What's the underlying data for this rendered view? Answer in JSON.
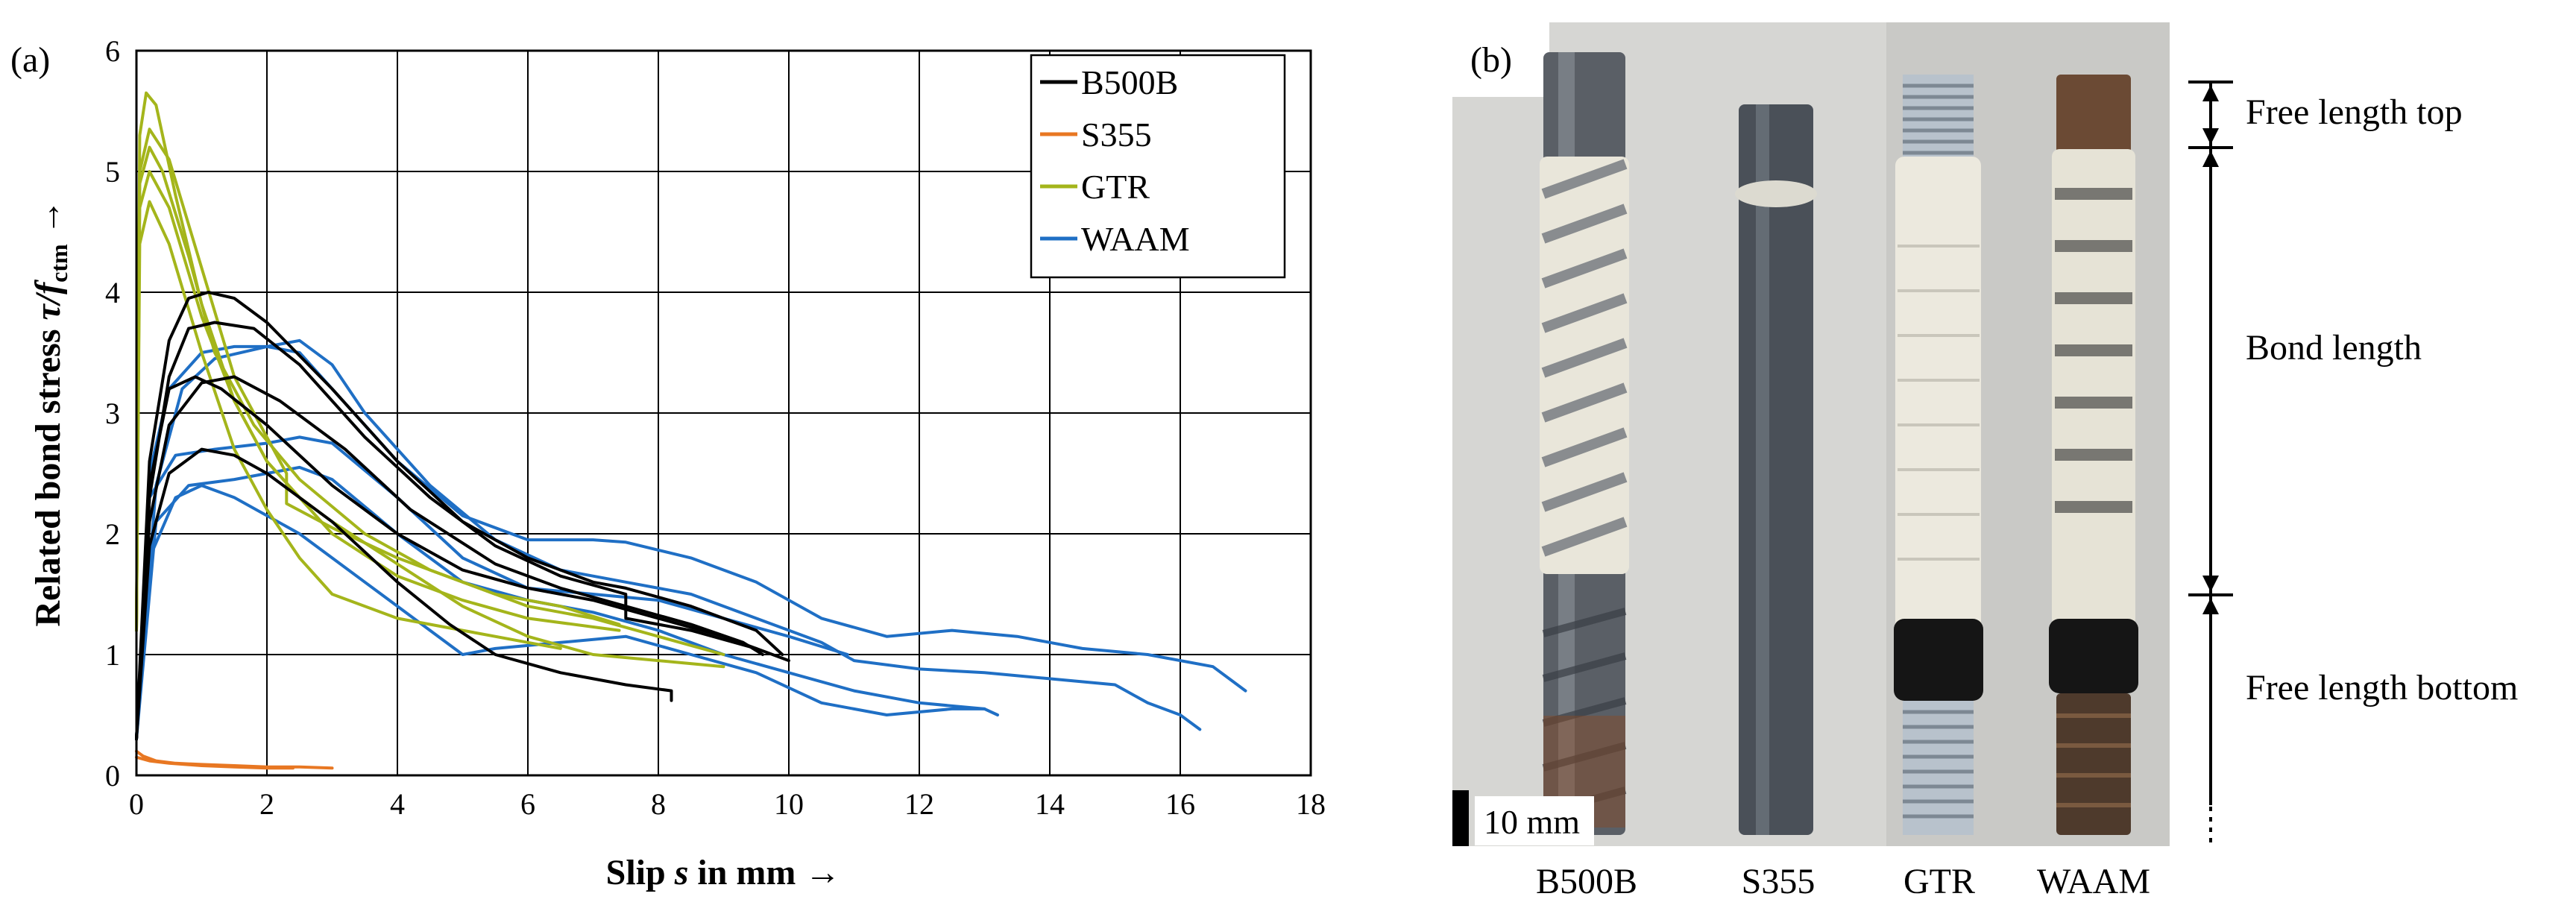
{
  "chart_data": {
    "panel_label": "(a)",
    "type": "line",
    "title": "",
    "xlabel": "Slip s in mm →",
    "xlabel_parts": {
      "a": "Slip ",
      "b": "s",
      "c": " in mm →"
    },
    "ylabel": "Related bond stress τ/fctm →",
    "ylabel_parts": {
      "a": "Related bond stress ",
      "b": "τ/",
      "c": "f",
      "d": "ctm",
      "e": " →"
    },
    "xlim": [
      0,
      18
    ],
    "ylim": [
      0,
      6
    ],
    "xticks": [
      "0",
      "2",
      "4",
      "6",
      "8",
      "10",
      "12",
      "14",
      "16",
      "18"
    ],
    "yticks": [
      "0",
      "1",
      "2",
      "3",
      "4",
      "5",
      "6"
    ],
    "grid": true,
    "legend_position": "top-right",
    "series": [
      {
        "name": "B500B",
        "color": "#000000",
        "curves": [
          [
            [
              0,
              0.3
            ],
            [
              0.2,
              2.6
            ],
            [
              0.5,
              3.6
            ],
            [
              0.8,
              3.95
            ],
            [
              1.1,
              4.0
            ],
            [
              1.5,
              3.95
            ],
            [
              2.0,
              3.75
            ],
            [
              3.0,
              3.2
            ],
            [
              4.0,
              2.6
            ],
            [
              5.0,
              2.1
            ],
            [
              6.0,
              1.8
            ],
            [
              7.0,
              1.6
            ],
            [
              7.5,
              1.55
            ],
            [
              8.5,
              1.4
            ],
            [
              9.5,
              1.2
            ],
            [
              9.9,
              1.0
            ]
          ],
          [
            [
              0,
              0.3
            ],
            [
              0.2,
              2.3
            ],
            [
              0.5,
              3.3
            ],
            [
              0.8,
              3.7
            ],
            [
              1.2,
              3.75
            ],
            [
              1.8,
              3.7
            ],
            [
              2.5,
              3.4
            ],
            [
              3.5,
              2.8
            ],
            [
              4.5,
              2.3
            ],
            [
              5.5,
              1.9
            ],
            [
              6.5,
              1.65
            ],
            [
              7.5,
              1.5
            ],
            [
              7.5,
              1.3
            ],
            [
              8.5,
              1.2
            ],
            [
              9.5,
              1.05
            ],
            [
              10,
              0.95
            ]
          ],
          [
            [
              0,
              0.3
            ],
            [
              0.2,
              2.1
            ],
            [
              0.5,
              2.9
            ],
            [
              1.0,
              3.25
            ],
            [
              1.5,
              3.3
            ],
            [
              2.2,
              3.1
            ],
            [
              3.2,
              2.7
            ],
            [
              4.2,
              2.2
            ],
            [
              5.5,
              1.75
            ],
            [
              6.5,
              1.55
            ],
            [
              7.5,
              1.4
            ],
            [
              8.5,
              1.25
            ],
            [
              9.3,
              1.1
            ],
            [
              9.6,
              1.0
            ]
          ],
          [
            [
              0,
              0.3
            ],
            [
              0.2,
              1.9
            ],
            [
              0.5,
              2.5
            ],
            [
              1.0,
              2.7
            ],
            [
              1.5,
              2.65
            ],
            [
              2.0,
              2.5
            ],
            [
              3.0,
              2.1
            ],
            [
              4.0,
              1.6
            ],
            [
              4.8,
              1.25
            ],
            [
              5.5,
              1.0
            ],
            [
              6.5,
              0.85
            ],
            [
              7.5,
              0.75
            ],
            [
              8.2,
              0.7
            ],
            [
              8.2,
              0.62
            ]
          ],
          [
            [
              0,
              0.3
            ],
            [
              0.2,
              2.4
            ],
            [
              0.5,
              3.2
            ],
            [
              0.9,
              3.3
            ],
            [
              1.3,
              3.2
            ],
            [
              2.0,
              2.9
            ],
            [
              3.0,
              2.4
            ],
            [
              4.0,
              2.0
            ],
            [
              5.0,
              1.7
            ],
            [
              6.0,
              1.55
            ],
            [
              7.0,
              1.45
            ],
            [
              8.0,
              1.3
            ],
            [
              9.0,
              1.15
            ],
            [
              9.5,
              1.05
            ]
          ]
        ]
      },
      {
        "name": "S355",
        "color": "#e87722",
        "curves": [
          [
            [
              0,
              0.2
            ],
            [
              0.1,
              0.16
            ],
            [
              0.3,
              0.12
            ],
            [
              0.6,
              0.1
            ],
            [
              1.0,
              0.09
            ],
            [
              1.5,
              0.08
            ],
            [
              2.0,
              0.07
            ],
            [
              2.5,
              0.07
            ],
            [
              3.0,
              0.06
            ]
          ],
          [
            [
              0,
              0.15
            ],
            [
              0.2,
              0.12
            ],
            [
              0.5,
              0.1
            ],
            [
              1.0,
              0.08
            ],
            [
              1.5,
              0.07
            ],
            [
              2.0,
              0.06
            ],
            [
              2.4,
              0.06
            ]
          ]
        ]
      },
      {
        "name": "GTR",
        "color": "#a4b51b",
        "curves": [
          [
            [
              0,
              1.2
            ],
            [
              0.05,
              5.3
            ],
            [
              0.15,
              5.65
            ],
            [
              0.3,
              5.55
            ],
            [
              0.6,
              4.8
            ],
            [
              1.0,
              3.9
            ],
            [
              1.5,
              3.1
            ],
            [
              2.0,
              2.6
            ],
            [
              2.5,
              2.3
            ],
            [
              3.0,
              2.1
            ],
            [
              4.0,
              1.75
            ],
            [
              5.0,
              1.4
            ],
            [
              6.0,
              1.15
            ],
            [
              7.0,
              1.0
            ],
            [
              8.0,
              0.95
            ],
            [
              9.0,
              0.9
            ]
          ],
          [
            [
              0,
              1.2
            ],
            [
              0.05,
              4.9
            ],
            [
              0.2,
              5.2
            ],
            [
              0.4,
              5.0
            ],
            [
              0.8,
              4.3
            ],
            [
              1.2,
              3.5
            ],
            [
              1.8,
              2.9
            ],
            [
              2.5,
              2.45
            ],
            [
              3.5,
              2.0
            ],
            [
              4.5,
              1.7
            ],
            [
              5.5,
              1.5
            ],
            [
              6.5,
              1.4
            ],
            [
              7.4,
              1.25
            ]
          ],
          [
            [
              0,
              1.2
            ],
            [
              0.05,
              4.7
            ],
            [
              0.2,
              5.0
            ],
            [
              0.5,
              4.7
            ],
            [
              1.0,
              3.8
            ],
            [
              1.5,
              3.1
            ],
            [
              2.0,
              2.6
            ],
            [
              3.0,
              2.0
            ],
            [
              4.0,
              1.65
            ],
            [
              5.0,
              1.45
            ],
            [
              6.0,
              1.3
            ],
            [
              7.4,
              1.2
            ]
          ],
          [
            [
              0,
              1.2
            ],
            [
              0.05,
              4.4
            ],
            [
              0.2,
              4.75
            ],
            [
              0.5,
              4.4
            ],
            [
              1.0,
              3.5
            ],
            [
              1.5,
              2.7
            ],
            [
              2.0,
              2.2
            ],
            [
              2.5,
              1.8
            ],
            [
              3.0,
              1.5
            ],
            [
              4.0,
              1.3
            ],
            [
              5.0,
              1.2
            ],
            [
              6.0,
              1.1
            ],
            [
              6.5,
              1.05
            ]
          ],
          [
            [
              0,
              1.2
            ],
            [
              0.05,
              5.0
            ],
            [
              0.2,
              5.35
            ],
            [
              0.5,
              5.1
            ],
            [
              1.0,
              4.2
            ],
            [
              1.5,
              3.3
            ],
            [
              2.0,
              2.8
            ],
            [
              2.3,
              2.5
            ],
            [
              2.3,
              2.25
            ],
            [
              3.0,
              2.05
            ],
            [
              4.0,
              1.8
            ],
            [
              5.0,
              1.6
            ],
            [
              6.0,
              1.4
            ],
            [
              7.0,
              1.3
            ],
            [
              8.0,
              1.15
            ],
            [
              9.0,
              1.0
            ]
          ]
        ]
      },
      {
        "name": "WAAM",
        "color": "#1f6fc5",
        "curves": [
          [
            [
              0,
              0.3
            ],
            [
              0.2,
              2.5
            ],
            [
              0.5,
              3.2
            ],
            [
              1.0,
              3.5
            ],
            [
              1.5,
              3.55
            ],
            [
              2.0,
              3.55
            ],
            [
              2.5,
              3.5
            ],
            [
              3.0,
              3.2
            ],
            [
              4.0,
              2.6
            ],
            [
              5.0,
              2.15
            ],
            [
              6.0,
              1.95
            ],
            [
              7.0,
              1.95
            ],
            [
              7.5,
              1.93
            ],
            [
              8.5,
              1.8
            ],
            [
              9.5,
              1.6
            ],
            [
              10.5,
              1.3
            ],
            [
              11.5,
              1.15
            ],
            [
              12.5,
              1.2
            ],
            [
              13.5,
              1.15
            ],
            [
              14.5,
              1.05
            ],
            [
              15.5,
              1.0
            ],
            [
              16.5,
              0.9
            ],
            [
              17.0,
              0.7
            ]
          ],
          [
            [
              0,
              0.3
            ],
            [
              0.3,
              2.4
            ],
            [
              0.7,
              3.2
            ],
            [
              1.2,
              3.45
            ],
            [
              2.0,
              3.55
            ],
            [
              2.5,
              3.6
            ],
            [
              3.0,
              3.4
            ],
            [
              3.5,
              3.0
            ],
            [
              4.5,
              2.4
            ],
            [
              5.5,
              1.95
            ],
            [
              6.5,
              1.7
            ],
            [
              7.5,
              1.6
            ],
            [
              8.5,
              1.5
            ],
            [
              9.5,
              1.3
            ],
            [
              10.5,
              1.1
            ],
            [
              11.0,
              0.95
            ],
            [
              12.0,
              0.88
            ],
            [
              13.0,
              0.85
            ],
            [
              14.0,
              0.8
            ],
            [
              15.0,
              0.75
            ],
            [
              15.5,
              0.6
            ],
            [
              16.0,
              0.5
            ],
            [
              16.3,
              0.38
            ]
          ],
          [
            [
              0,
              0.3
            ],
            [
              0.2,
              2.3
            ],
            [
              0.6,
              2.65
            ],
            [
              1.2,
              2.7
            ],
            [
              2.0,
              2.75
            ],
            [
              2.5,
              2.8
            ],
            [
              3.0,
              2.75
            ],
            [
              4.0,
              2.3
            ],
            [
              5.0,
              1.8
            ],
            [
              6.0,
              1.55
            ],
            [
              7.0,
              1.5
            ],
            [
              8.0,
              1.45
            ],
            [
              9.0,
              1.3
            ],
            [
              10.0,
              1.15
            ],
            [
              10.9,
              1.0
            ]
          ],
          [
            [
              0,
              0.3
            ],
            [
              0.3,
              2.1
            ],
            [
              0.8,
              2.4
            ],
            [
              1.5,
              2.45
            ],
            [
              2.0,
              2.5
            ],
            [
              2.5,
              2.55
            ],
            [
              3.0,
              2.45
            ],
            [
              4.0,
              2.0
            ],
            [
              5.0,
              1.6
            ],
            [
              6.0,
              1.45
            ],
            [
              7.0,
              1.35
            ],
            [
              8.0,
              1.2
            ],
            [
              9.0,
              1.0
            ],
            [
              10.0,
              0.85
            ],
            [
              11.0,
              0.7
            ],
            [
              12.0,
              0.6
            ],
            [
              13.0,
              0.55
            ],
            [
              13.2,
              0.5
            ]
          ],
          [
            [
              0,
              0.3
            ],
            [
              0.2,
              1.8
            ],
            [
              0.6,
              2.3
            ],
            [
              1.0,
              2.4
            ],
            [
              1.5,
              2.3
            ],
            [
              2.5,
              2.0
            ],
            [
              3.5,
              1.6
            ],
            [
              4.5,
              1.2
            ],
            [
              5.0,
              1.0
            ],
            [
              5.5,
              1.05
            ],
            [
              6.5,
              1.1
            ],
            [
              7.5,
              1.15
            ],
            [
              8.5,
              1.0
            ],
            [
              9.5,
              0.85
            ],
            [
              10.5,
              0.6
            ],
            [
              11.5,
              0.5
            ],
            [
              12.5,
              0.55
            ],
            [
              13.0,
              0.55
            ]
          ]
        ]
      }
    ]
  },
  "photo": {
    "panel_label": "(b)",
    "bar_labels": [
      "B500B",
      "S355",
      "GTR",
      "WAAM"
    ],
    "scale_label": "10 mm",
    "annotations": {
      "free_top": "Free length top",
      "bond": "Bond length",
      "free_bottom": "Free length bottom"
    },
    "colors": {
      "background": "#d4d4d1",
      "plaster": "#ebe8dc",
      "steel_dark": "#4a5058",
      "thread": "#b8c2cc",
      "tape": "#151515",
      "rust": "#7a4a2a"
    }
  }
}
